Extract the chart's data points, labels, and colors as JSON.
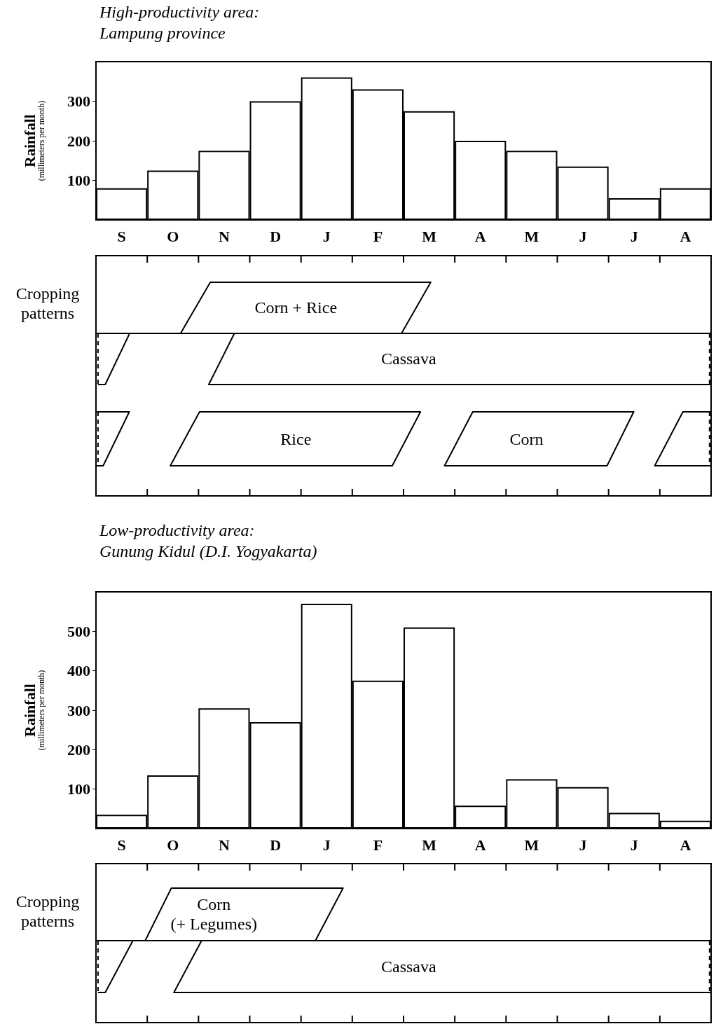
{
  "chart_data": [
    {
      "type": "bar",
      "title": "High-productivity area:",
      "subtitle": "Lampung province",
      "ylabel": "Rainfall (millimeters per month)",
      "categories": [
        "S",
        "O",
        "N",
        "D",
        "J",
        "F",
        "M",
        "A",
        "M",
        "J",
        "J",
        "A"
      ],
      "values": [
        80,
        125,
        175,
        300,
        360,
        330,
        275,
        200,
        175,
        135,
        55,
        80
      ],
      "color": "#ffffff",
      "ylim": [
        0,
        400
      ],
      "yticks": [
        100,
        200,
        300
      ],
      "grid": false
    },
    {
      "type": "other",
      "ylabel": "Cropping patterns",
      "annotations": [
        "Corn + Rice",
        "Cassava",
        "Rice",
        "Corn"
      ]
    },
    {
      "type": "bar",
      "title": "Low-productivity area:",
      "subtitle": "Gunung Kidul (D.I. Yogyakarta)",
      "ylabel": "Rainfall (millimeters per month)",
      "categories": [
        "S",
        "O",
        "N",
        "D",
        "J",
        "F",
        "M",
        "A",
        "M",
        "J",
        "J",
        "A"
      ],
      "values": [
        35,
        135,
        305,
        270,
        570,
        375,
        510,
        58,
        125,
        105,
        40,
        20
      ],
      "color": "#ffffff",
      "ylim": [
        0,
        600
      ],
      "yticks": [
        100,
        200,
        300,
        400,
        500
      ],
      "grid": false
    },
    {
      "type": "other",
      "ylabel": "Cropping patterns",
      "annotations": [
        "Corn\n(+ Legumes)",
        "Cassava"
      ]
    }
  ]
}
